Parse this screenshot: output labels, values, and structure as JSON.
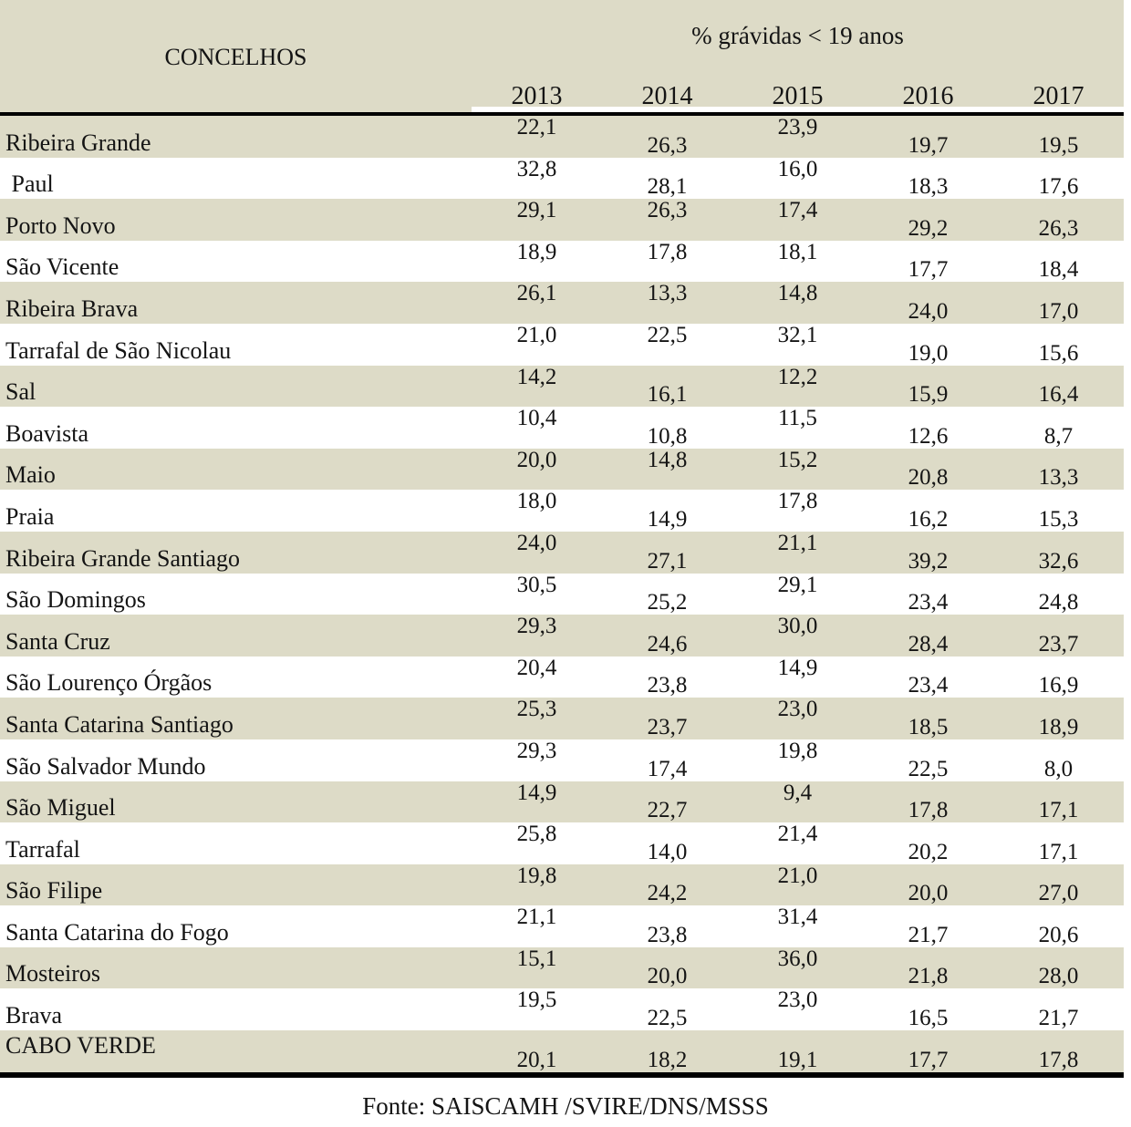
{
  "header": {
    "concelhos_label": "CONCELHOS",
    "group_label": "% grávidas < 19 anos",
    "years": [
      "2013",
      "2014",
      "2015",
      "2016",
      "2017"
    ]
  },
  "rows": [
    {
      "label": "Ribeira Grande",
      "values": [
        "22,1",
        "26,3",
        "23,9",
        "19,7",
        "19,5"
      ],
      "align": [
        "top",
        "bottom",
        "top",
        "bottom",
        "bottom"
      ]
    },
    {
      "label": " Paul",
      "values": [
        "32,8",
        "28,1",
        "16,0",
        "18,3",
        "17,6"
      ],
      "align": [
        "top",
        "bottom",
        "top",
        "bottom",
        "bottom"
      ]
    },
    {
      "label": "Porto Novo",
      "values": [
        "29,1",
        "26,3",
        "17,4",
        "29,2",
        "26,3"
      ],
      "align": [
        "top",
        "top",
        "top",
        "bottom",
        "bottom"
      ]
    },
    {
      "label": "São Vicente",
      "values": [
        "18,9",
        "17,8",
        "18,1",
        "17,7",
        "18,4"
      ],
      "align": [
        "top",
        "top",
        "top",
        "bottom",
        "bottom"
      ]
    },
    {
      "label": "Ribeira Brava",
      "values": [
        "26,1",
        "13,3",
        "14,8",
        "24,0",
        "17,0"
      ],
      "align": [
        "top",
        "top",
        "top",
        "bottom",
        "bottom"
      ]
    },
    {
      "label": "Tarrafal de São Nicolau",
      "values": [
        "21,0",
        "22,5",
        "32,1",
        "19,0",
        "15,6"
      ],
      "align": [
        "top",
        "top",
        "top",
        "bottom",
        "bottom"
      ]
    },
    {
      "label": "Sal",
      "values": [
        "14,2",
        "16,1",
        "12,2",
        "15,9",
        "16,4"
      ],
      "align": [
        "top",
        "bottom",
        "top",
        "bottom",
        "bottom"
      ]
    },
    {
      "label": "Boavista",
      "values": [
        "10,4",
        "10,8",
        "11,5",
        "12,6",
        "8,7"
      ],
      "align": [
        "top",
        "bottom",
        "top",
        "bottom",
        "bottom"
      ]
    },
    {
      "label": "Maio",
      "values": [
        "20,0",
        "14,8",
        "15,2",
        "20,8",
        "13,3"
      ],
      "align": [
        "top",
        "top",
        "top",
        "bottom",
        "bottom"
      ]
    },
    {
      "label": "Praia",
      "values": [
        "18,0",
        "14,9",
        "17,8",
        "16,2",
        "15,3"
      ],
      "align": [
        "top",
        "bottom",
        "top",
        "bottom",
        "bottom"
      ]
    },
    {
      "label": "Ribeira Grande Santiago",
      "values": [
        "24,0",
        "27,1",
        "21,1",
        "39,2",
        "32,6"
      ],
      "align": [
        "top",
        "bottom",
        "top",
        "bottom",
        "bottom"
      ]
    },
    {
      "label": "São Domingos",
      "values": [
        "30,5",
        "25,2",
        "29,1",
        "23,4",
        "24,8"
      ],
      "align": [
        "top",
        "bottom",
        "top",
        "bottom",
        "bottom"
      ]
    },
    {
      "label": "Santa Cruz",
      "values": [
        "29,3",
        "24,6",
        "30,0",
        "28,4",
        "23,7"
      ],
      "align": [
        "top",
        "bottom",
        "top",
        "bottom",
        "bottom"
      ]
    },
    {
      "label": "São Lourenço Órgãos",
      "values": [
        "20,4",
        "23,8",
        "14,9",
        "23,4",
        "16,9"
      ],
      "align": [
        "top",
        "bottom",
        "top",
        "bottom",
        "bottom"
      ]
    },
    {
      "label": "Santa Catarina Santiago",
      "values": [
        "25,3",
        "23,7",
        "23,0",
        "18,5",
        "18,9"
      ],
      "align": [
        "top",
        "bottom",
        "top",
        "bottom",
        "bottom"
      ]
    },
    {
      "label": "São Salvador Mundo",
      "values": [
        "29,3",
        "17,4",
        "19,8",
        "22,5",
        "8,0"
      ],
      "align": [
        "top",
        "bottom",
        "top",
        "bottom",
        "bottom"
      ]
    },
    {
      "label": "São Miguel",
      "values": [
        "14,9",
        "22,7",
        "9,4",
        "17,8",
        "17,1"
      ],
      "align": [
        "top",
        "bottom",
        "top",
        "bottom",
        "bottom"
      ]
    },
    {
      "label": "Tarrafal",
      "values": [
        "25,8",
        "14,0",
        "21,4",
        "20,2",
        "17,1"
      ],
      "align": [
        "top",
        "bottom",
        "top",
        "bottom",
        "bottom"
      ]
    },
    {
      "label": "São Filipe",
      "values": [
        "19,8",
        "24,2",
        "21,0",
        "20,0",
        "27,0"
      ],
      "align": [
        "top",
        "bottom",
        "top",
        "bottom",
        "bottom"
      ]
    },
    {
      "label": "Santa Catarina do Fogo",
      "values": [
        "21,1",
        "23,8",
        "31,4",
        "21,7",
        "20,6"
      ],
      "align": [
        "top",
        "bottom",
        "top",
        "bottom",
        "bottom"
      ]
    },
    {
      "label": "Mosteiros",
      "values": [
        "15,1",
        "20,0",
        "36,0",
        "21,8",
        "28,0"
      ],
      "align": [
        "top",
        "bottom",
        "top",
        "bottom",
        "bottom"
      ]
    },
    {
      "label": "Brava",
      "values": [
        "19,5",
        "22,5",
        "23,0",
        "16,5",
        "21,7"
      ],
      "align": [
        "top",
        "bottom",
        "top",
        "bottom",
        "bottom"
      ]
    },
    {
      "label": "CABO VERDE",
      "values": [
        "20,1",
        "18,2",
        "19,1",
        "17,7",
        "17,8"
      ],
      "align": [
        "bottom",
        "bottom",
        "bottom",
        "bottom",
        "bottom"
      ],
      "total": true
    }
  ],
  "footer": {
    "source": "Fonte: SAISCAMH /SVIRE/DNS/MSSS"
  },
  "colors": {
    "row-beige": "#dddbc7",
    "rule": "#000000",
    "text": "#141414",
    "page-bg": "#ffffff"
  }
}
